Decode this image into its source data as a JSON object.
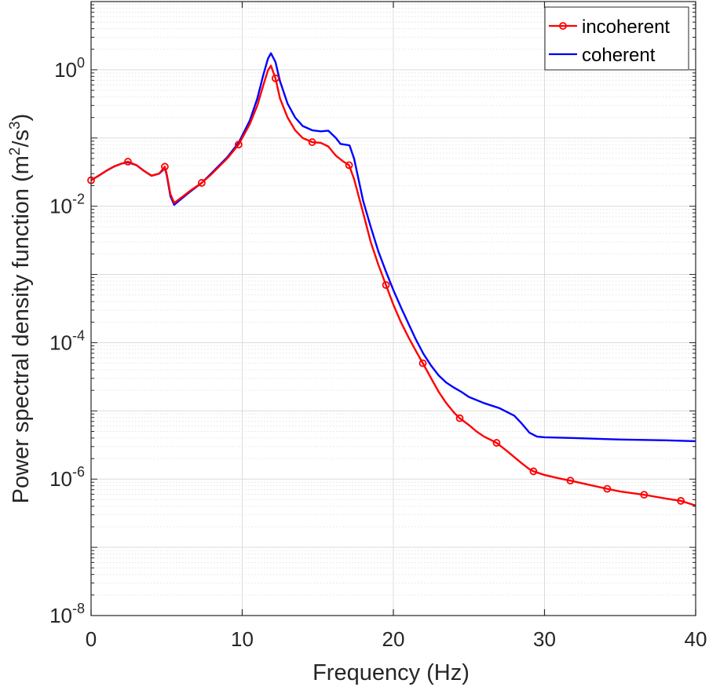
{
  "chart_data": {
    "type": "line",
    "title": "",
    "xlabel": "Frequency (Hz)",
    "ylabel": {
      "main": "Power spectral density function (m",
      "sup1": "2",
      "mid": "/s",
      "sup2": "3",
      "end": ")"
    },
    "xlim": [
      0,
      40
    ],
    "ylim": [
      1e-08,
      10
    ],
    "yscale": "log",
    "grid": true,
    "legend_location": "top-right",
    "x_ticks": [
      {
        "value": 0,
        "label": "0"
      },
      {
        "value": 10,
        "label": "10"
      },
      {
        "value": 20,
        "label": "20"
      },
      {
        "value": 30,
        "label": "30"
      },
      {
        "value": 40,
        "label": "40"
      }
    ],
    "y_ticks": [
      {
        "value": 1,
        "base": "10",
        "exp": "0"
      },
      {
        "value": 0.01,
        "base": "10",
        "exp": "-2"
      },
      {
        "value": 0.0001,
        "base": "10",
        "exp": "-4"
      },
      {
        "value": 1e-06,
        "base": "10",
        "exp": "-6"
      },
      {
        "value": 1e-08,
        "base": "10",
        "exp": "-8"
      }
    ],
    "series": [
      {
        "name": "incoherent",
        "color": "#ff0000",
        "marker": "circle",
        "markers_x": [
          0,
          2.44,
          4.88,
          7.32,
          9.76,
          12.2,
          14.63,
          17.07,
          19.51,
          21.95,
          24.39,
          26.83,
          29.27,
          31.71,
          34.15,
          36.59,
          39.02
        ],
        "x": [
          0,
          0.5,
          1,
          1.5,
          2,
          2.44,
          3,
          3.5,
          4,
          4.5,
          4.88,
          5,
          5.25,
          5.5,
          6,
          6.5,
          7.32,
          8,
          9,
          9.76,
          10.5,
          11,
          11.4,
          11.7,
          11.9,
          12.2,
          12.5,
          13,
          13.5,
          14,
          14.63,
          15.2,
          15.7,
          16.2,
          16.7,
          17.07,
          17.4,
          18,
          18.5,
          19,
          19.51,
          20,
          20.5,
          21,
          21.5,
          21.95,
          22.5,
          23,
          23.5,
          24,
          24.39,
          25,
          25.5,
          26,
          26.5,
          26.83,
          27.5,
          28,
          28.5,
          29,
          29.27,
          30,
          31,
          31.71,
          33,
          34.15,
          35,
          36.59,
          38,
          39.02,
          40
        ],
        "y": [
          0.024,
          0.028,
          0.033,
          0.038,
          0.042,
          0.045,
          0.04,
          0.033,
          0.028,
          0.03,
          0.038,
          0.03,
          0.015,
          0.0112,
          0.0135,
          0.0165,
          0.022,
          0.03,
          0.05,
          0.08,
          0.16,
          0.3,
          0.6,
          0.98,
          1.15,
          0.75,
          0.38,
          0.2,
          0.13,
          0.1,
          0.087,
          0.085,
          0.075,
          0.055,
          0.045,
          0.04,
          0.025,
          0.008,
          0.003,
          0.0014,
          0.0007,
          0.00036,
          0.0002,
          0.00012,
          7.5e-05,
          5e-05,
          3e-05,
          1.9e-05,
          1.3e-05,
          9.5e-06,
          7.8e-06,
          6.2e-06,
          5e-06,
          4.2e-06,
          3.7e-06,
          3.4e-06,
          2.6e-06,
          2.1e-06,
          1.7e-06,
          1.4e-06,
          1.3e-06,
          1.15e-06,
          1.02e-06,
          9.5e-07,
          8.2e-07,
          7.2e-07,
          6.6e-07,
          5.9e-07,
          5.2e-07,
          4.8e-07,
          4.1e-07
        ]
      },
      {
        "name": "coherent",
        "color": "#0000ff",
        "x": [
          0,
          0.5,
          1,
          1.5,
          2,
          2.44,
          3,
          3.5,
          4,
          4.5,
          4.88,
          5,
          5.25,
          5.5,
          6,
          6.5,
          7.32,
          8,
          9,
          9.76,
          10.5,
          11,
          11.4,
          11.7,
          11.9,
          12.2,
          12.5,
          13,
          13.5,
          14,
          14.63,
          15.2,
          15.7,
          16.2,
          16.5,
          16.8,
          17.1,
          17.4,
          18,
          18.5,
          19,
          19.51,
          20,
          20.5,
          21,
          21.5,
          22,
          22.5,
          23,
          23.5,
          24,
          24.5,
          25,
          26,
          27,
          28,
          28.5,
          29,
          29.5,
          30,
          32,
          35,
          38,
          40
        ],
        "y": [
          0.024,
          0.028,
          0.033,
          0.038,
          0.042,
          0.044,
          0.04,
          0.033,
          0.028,
          0.03,
          0.036,
          0.029,
          0.014,
          0.0105,
          0.013,
          0.016,
          0.022,
          0.031,
          0.052,
          0.085,
          0.18,
          0.38,
          0.85,
          1.45,
          1.75,
          1.3,
          0.68,
          0.32,
          0.2,
          0.15,
          0.13,
          0.125,
          0.128,
          0.1,
          0.082,
          0.08,
          0.078,
          0.05,
          0.012,
          0.005,
          0.0022,
          0.0011,
          0.00059,
          0.00033,
          0.00019,
          0.00011,
          6.8e-05,
          4.6e-05,
          3.3e-05,
          2.6e-05,
          2.2e-05,
          1.9e-05,
          1.6e-05,
          1.3e-05,
          1.1e-05,
          8.5e-06,
          6.5e-06,
          4.8e-06,
          4.2e-06,
          4.1e-06,
          4e-06,
          3.8e-06,
          3.7e-06,
          3.6e-06
        ]
      }
    ]
  }
}
